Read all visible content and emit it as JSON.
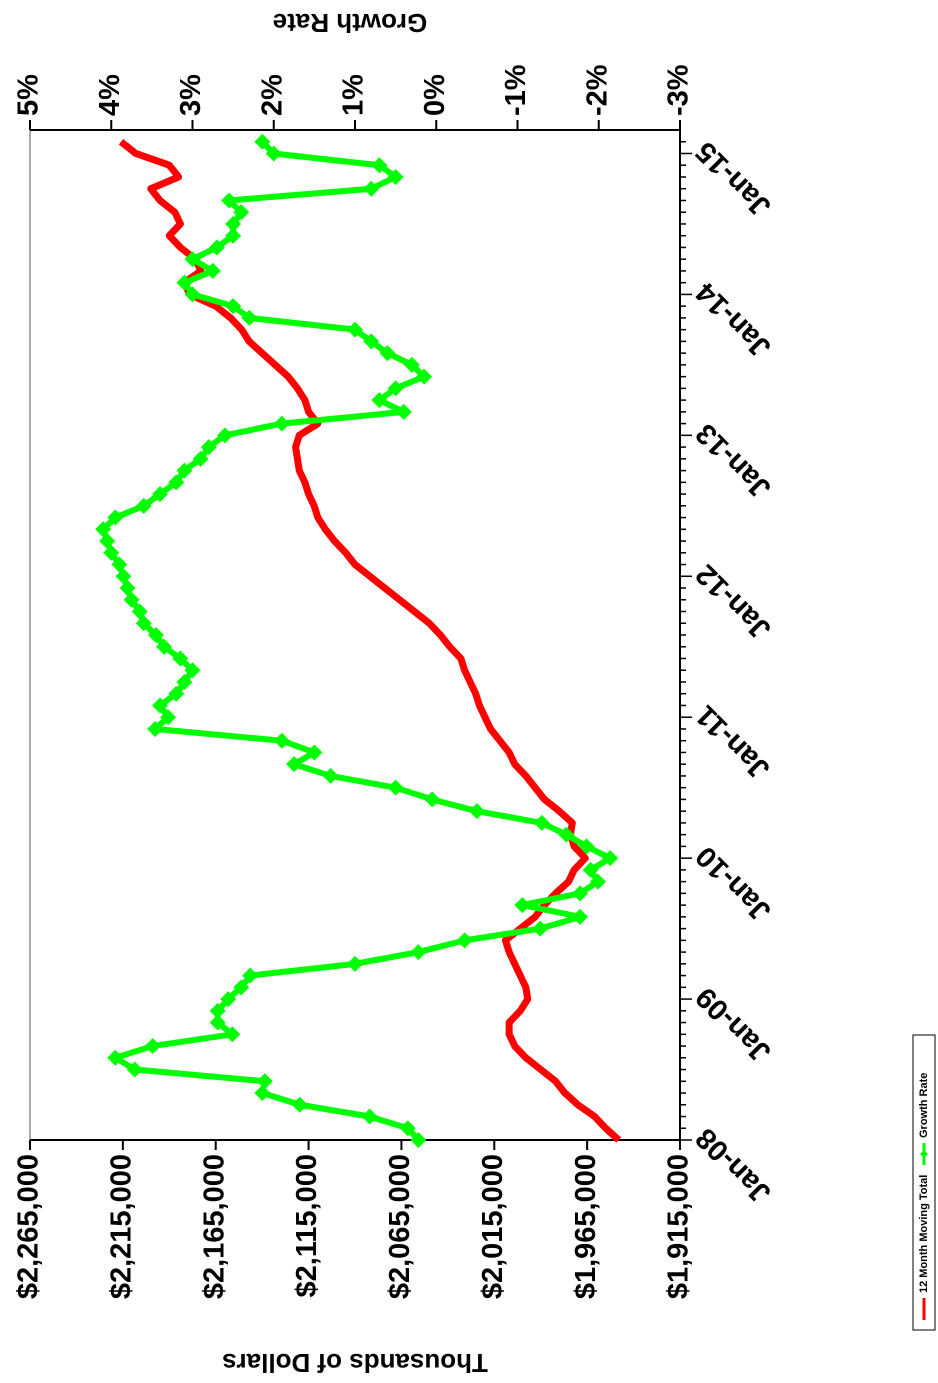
{
  "chart_data": {
    "type": "line",
    "y_label": "Thousands of Dollars",
    "y2_label": "Growth Rate",
    "categories": [
      "Jan-08",
      null,
      null,
      null,
      null,
      null,
      null,
      null,
      null,
      null,
      null,
      null,
      "Jan-09",
      null,
      null,
      null,
      null,
      null,
      null,
      null,
      null,
      null,
      null,
      null,
      "Jan-10",
      null,
      null,
      null,
      null,
      null,
      null,
      null,
      null,
      null,
      null,
      null,
      "Jan-11",
      null,
      null,
      null,
      null,
      null,
      null,
      null,
      null,
      null,
      null,
      null,
      "Jan-12",
      null,
      null,
      null,
      null,
      null,
      null,
      null,
      null,
      null,
      null,
      null,
      "Jan-13",
      null,
      null,
      null,
      null,
      null,
      null,
      null,
      null,
      null,
      null,
      null,
      "Jan-14",
      null,
      null,
      null,
      null,
      null,
      null,
      null,
      null,
      null,
      null,
      null,
      "Jan-15",
      null
    ],
    "series": [
      {
        "name": "12 Month Moving Total",
        "color": "#ff0000",
        "values": [
          1948000,
          1955000,
          1961000,
          1970000,
          1977000,
          1982000,
          1990000,
          1998000,
          2004000,
          2007000,
          2007000,
          2001000,
          1997000,
          1998000,
          2001000,
          2004000,
          2007000,
          2009000,
          2001000,
          1993000,
          1988000,
          1982000,
          1975000,
          1972000,
          1966000,
          1972000,
          1974000,
          1973000,
          1980000,
          1988000,
          1993000,
          1998000,
          2004000,
          2007000,
          2012000,
          2017000,
          2020000,
          2023000,
          2025000,
          2028000,
          2031000,
          2033000,
          2039000,
          2044000,
          2050000,
          2058000,
          2066000,
          2074000,
          2082000,
          2090000,
          2095000,
          2101000,
          2106000,
          2110000,
          2112000,
          2115000,
          2117000,
          2120000,
          2121000,
          2122000,
          2120000,
          2110000,
          2115000,
          2117000,
          2121000,
          2126000,
          2133000,
          2140000,
          2147000,
          2151000,
          2157000,
          2165000,
          2179000,
          2182000,
          2173000,
          2176000,
          2184000,
          2190000,
          2184000,
          2187000,
          2195000,
          2200000,
          2185000,
          2190000,
          2208000,
          2216000
        ]
      },
      {
        "name": "Growth Rate",
        "color": "#00ff00",
        "axis": "y2",
        "values": [
          0.22,
          0.35,
          0.82,
          1.68,
          2.14,
          2.11,
          3.71,
          3.95,
          3.49,
          2.51,
          2.69,
          2.69,
          2.56,
          2.4,
          2.29,
          1.0,
          0.22,
          -0.35,
          -1.28,
          -1.77,
          -1.06,
          -1.77,
          -1.99,
          -1.9,
          -2.14,
          -1.85,
          -1.6,
          -1.3,
          -0.5,
          0.05,
          0.5,
          1.3,
          1.75,
          1.5,
          1.9,
          3.46,
          3.3,
          3.4,
          3.2,
          3.1,
          3.0,
          3.15,
          3.35,
          3.45,
          3.6,
          3.65,
          3.75,
          3.8,
          3.85,
          3.9,
          4.0,
          4.05,
          4.1,
          3.95,
          3.6,
          3.4,
          3.2,
          3.1,
          2.9,
          2.8,
          2.6,
          1.9,
          0.4,
          0.7,
          0.5,
          0.15,
          0.3,
          0.6,
          0.8,
          1.0,
          2.3,
          2.5,
          3.0,
          3.1,
          2.75,
          3.0,
          2.7,
          2.5,
          2.5,
          2.4,
          2.55,
          0.8,
          0.5,
          0.7,
          2.0,
          2.14
        ]
      }
    ],
    "ylim": [
      1915000,
      2265000
    ],
    "yticks": [
      {
        "value": 1915000,
        "label": "$1,915,000"
      },
      {
        "value": 1965000,
        "label": "$1,965,000"
      },
      {
        "value": 2015000,
        "label": "$2,015,000"
      },
      {
        "value": 2065000,
        "label": "$2,065,000"
      },
      {
        "value": 2115000,
        "label": "$2,115,000"
      },
      {
        "value": 2165000,
        "label": "$2,165,000"
      },
      {
        "value": 2215000,
        "label": "$2,215,000"
      },
      {
        "value": 2265000,
        "label": "$2,265,000"
      }
    ],
    "y2lim": [
      -3,
      5
    ],
    "y2ticks": [
      {
        "value": -3,
        "label": "-3%"
      },
      {
        "value": -2,
        "label": "-2%"
      },
      {
        "value": -1,
        "label": "-1%"
      },
      {
        "value": 0,
        "label": "0%"
      },
      {
        "value": 1,
        "label": "1%"
      },
      {
        "value": 2,
        "label": "2%"
      },
      {
        "value": 3,
        "label": "3%"
      },
      {
        "value": 4,
        "label": "4%"
      },
      {
        "value": 5,
        "label": "5%"
      }
    ],
    "legend": "bottom"
  }
}
